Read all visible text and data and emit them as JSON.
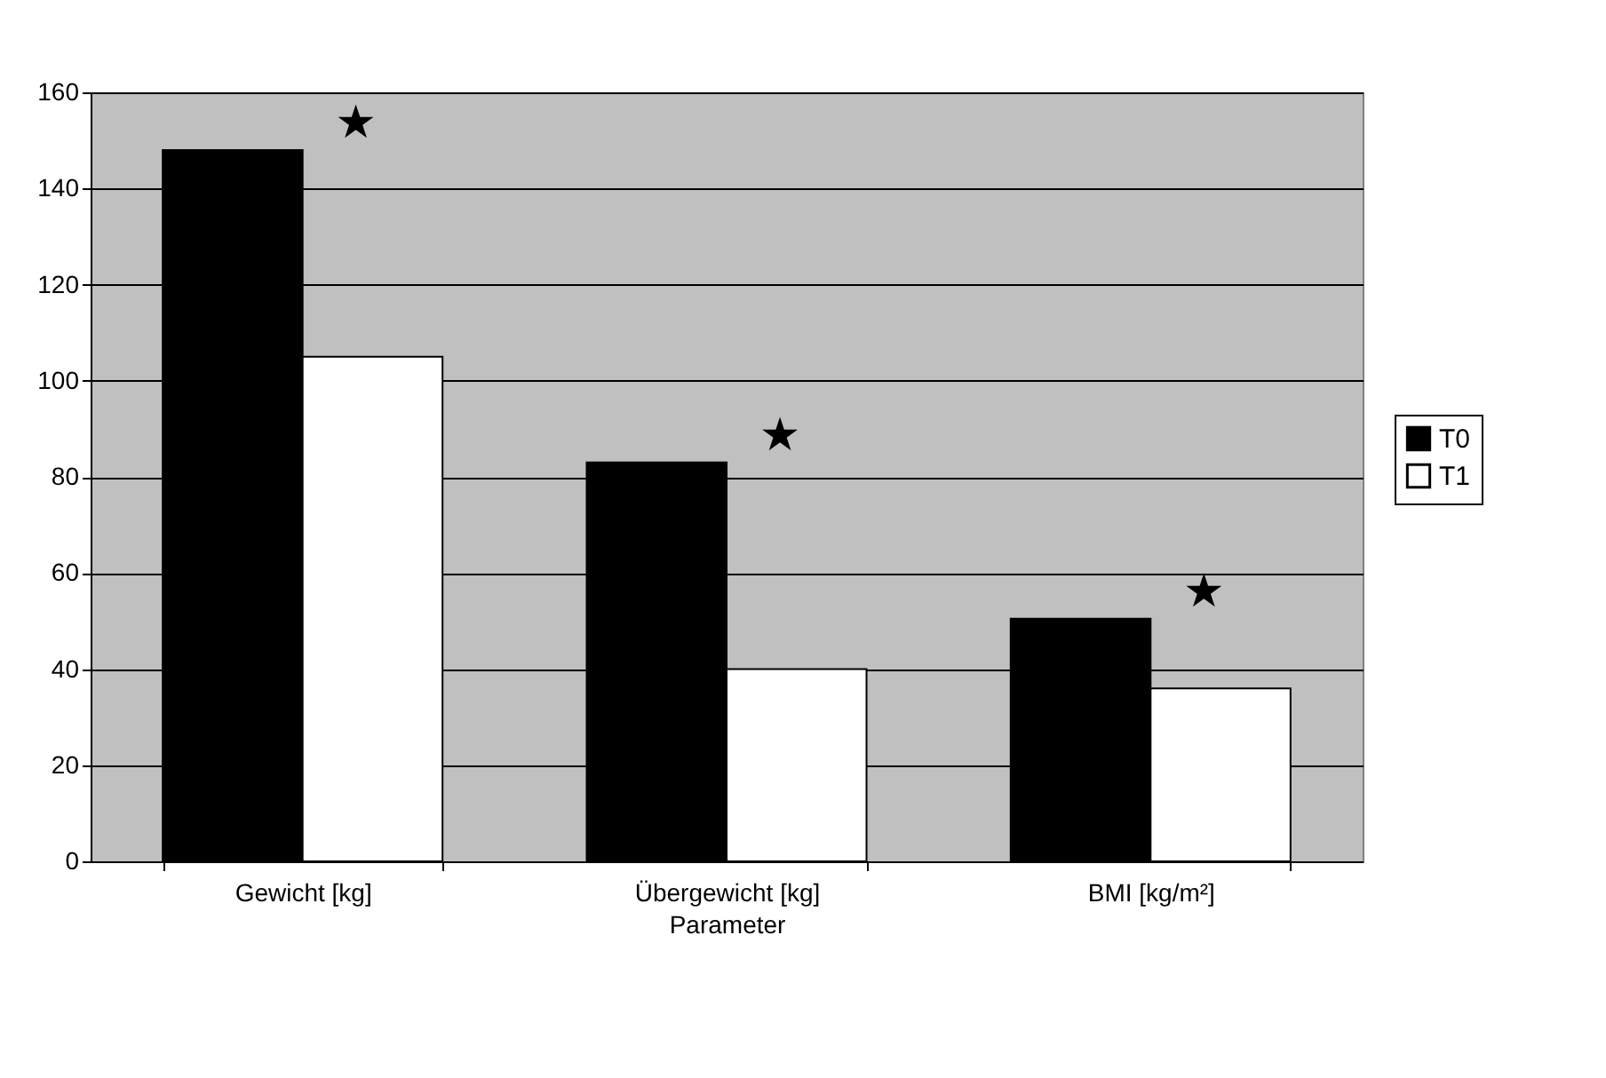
{
  "chart_data": {
    "type": "bar",
    "xlabel": "Parameter",
    "categories": [
      "Gewicht [kg]",
      "Übergewicht [kg]",
      "BMI [kg/m²]"
    ],
    "series": [
      {
        "name": "T0",
        "color": "#000000",
        "values": [
          148,
          83,
          50.5
        ]
      },
      {
        "name": "T1",
        "color": "#ffffff",
        "values": [
          105,
          40,
          36
        ]
      }
    ],
    "ylim": [
      0,
      160
    ],
    "yticks": [
      0,
      20,
      40,
      60,
      80,
      100,
      120,
      140,
      160
    ],
    "grid": "y",
    "legend": "right",
    "annotations": [
      "★",
      "★",
      "★"
    ]
  }
}
